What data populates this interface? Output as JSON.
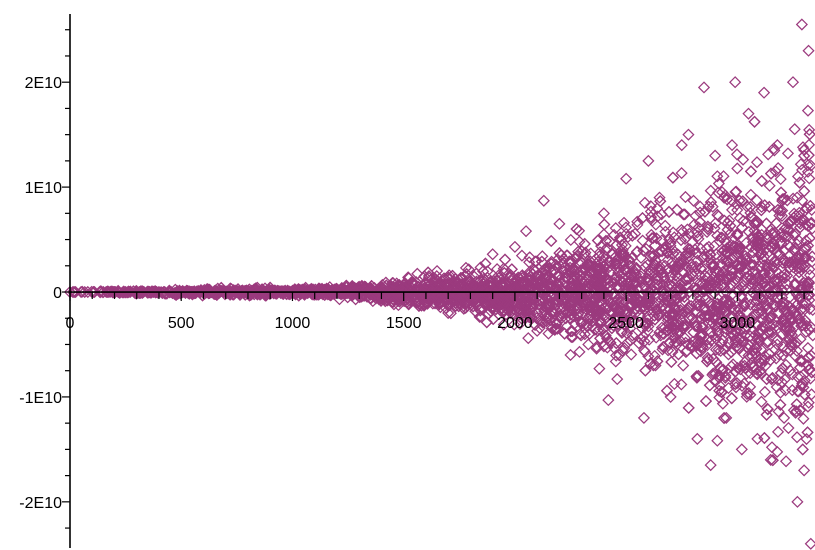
{
  "chart_data": {
    "type": "scatter",
    "title": "",
    "xlabel": "",
    "ylabel": "",
    "xlim": [
      0,
      3340
    ],
    "ylim": [
      -24400000000,
      26500000000
    ],
    "grid": false,
    "legend": "none",
    "marker": "diamond",
    "series": [
      {
        "color": "#9b3a7e",
        "envelope_description": "points concentrated near y=0, vertical spread widening with x",
        "points": [
          [
            0,
            0
          ],
          [
            25,
            0
          ],
          [
            50,
            0
          ],
          [
            80,
            0
          ],
          [
            110,
            0
          ],
          [
            150,
            0
          ],
          [
            200,
            0
          ],
          [
            250,
            0
          ],
          [
            300,
            0
          ],
          [
            350,
            0
          ],
          [
            400,
            0
          ],
          [
            450,
            0
          ],
          [
            500,
            0
          ],
          [
            550,
            0
          ],
          [
            600,
            0
          ],
          [
            650,
            0
          ],
          [
            700,
            0
          ],
          [
            750,
            0
          ],
          [
            800,
            0
          ],
          [
            850,
            0
          ],
          [
            900,
            0
          ],
          [
            950,
            0
          ],
          [
            1000,
            0
          ],
          [
            1100,
            0
          ],
          [
            1200,
            0
          ],
          [
            1300,
            0
          ],
          [
            1400,
            0
          ],
          [
            1500,
            0
          ],
          [
            1300,
            500000000
          ],
          [
            1350,
            -600000000
          ],
          [
            1420,
            900000000
          ],
          [
            1450,
            -1000000000
          ],
          [
            1520,
            1400000000
          ],
          [
            1580,
            -1300000000
          ],
          [
            1650,
            2000000000
          ],
          [
            1700,
            -2000000000
          ],
          [
            1780,
            2300000000
          ],
          [
            1850,
            -2400000000
          ],
          [
            1900,
            3600000000
          ],
          [
            1950,
            -3100000000
          ],
          [
            2000,
            4300000000
          ],
          [
            2050,
            5800000000
          ],
          [
            2060,
            -4400000000
          ],
          [
            2100,
            -3700000000
          ],
          [
            2130,
            8700000000
          ],
          [
            2160,
            -2700000000
          ],
          [
            2200,
            6500000000
          ],
          [
            2250,
            -6000000000
          ],
          [
            2290,
            4800000000
          ],
          [
            2330,
            -5000000000
          ],
          [
            2400,
            7500000000
          ],
          [
            2420,
            -10300000000
          ],
          [
            2460,
            -8300000000
          ],
          [
            2500,
            10800000000
          ],
          [
            2550,
            6700000000
          ],
          [
            2580,
            -12000000000
          ],
          [
            2600,
            12500000000
          ],
          [
            2650,
            9000000000
          ],
          [
            2700,
            -10000000000
          ],
          [
            2750,
            14000000000
          ],
          [
            2780,
            15000000000
          ],
          [
            2820,
            -14000000000
          ],
          [
            2850,
            19500000000
          ],
          [
            2880,
            -16500000000
          ],
          [
            2900,
            13000000000
          ],
          [
            2950,
            -12000000000
          ],
          [
            2990,
            20000000000
          ],
          [
            3020,
            -15000000000
          ],
          [
            3050,
            17000000000
          ],
          [
            3090,
            -14000000000
          ],
          [
            3120,
            19000000000
          ],
          [
            3150,
            -16000000000
          ],
          [
            3180,
            14000000000
          ],
          [
            3210,
            -12000000000
          ],
          [
            3250,
            20000000000
          ],
          [
            3270,
            -20000000000
          ],
          [
            3290,
            25500000000
          ],
          [
            3300,
            -17000000000
          ],
          [
            3320,
            23000000000
          ],
          [
            3330,
            -24000000000
          ]
        ]
      }
    ],
    "xticks": [
      0,
      500,
      1000,
      1500,
      2000,
      2500,
      3000
    ],
    "xtick_labels": [
      "0",
      "500",
      "1000",
      "1500",
      "2000",
      "2500",
      "3000"
    ],
    "yticks": [
      -20000000000,
      -10000000000,
      0,
      10000000000,
      20000000000
    ],
    "ytick_labels": [
      "-2E10",
      "-1E10",
      "0",
      "1E10",
      "2E10"
    ]
  }
}
